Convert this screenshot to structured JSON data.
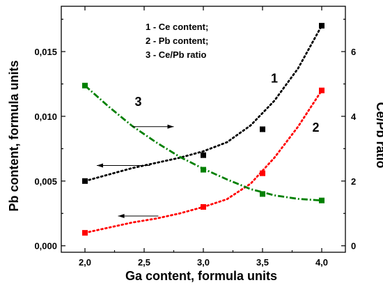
{
  "chart_data": {
    "type": "scatter",
    "title": "",
    "xlabel": "Ga content, formula units",
    "ylabel": "Pb content, formula units",
    "y2label": "Ce/Pb ratio",
    "xlim": [
      1.8,
      4.2
    ],
    "ylim": [
      -0.0005,
      0.0185
    ],
    "y2lim": [
      -0.2,
      7.4
    ],
    "x_ticks": [
      "2,0",
      "2,5",
      "3,0",
      "3,5",
      "4,0"
    ],
    "x_tick_values": [
      2.0,
      2.5,
      3.0,
      3.5,
      4.0
    ],
    "y_ticks": [
      "0,000",
      "0,005",
      "0,010",
      "0,015"
    ],
    "y_tick_values": [
      0.0,
      0.005,
      0.01,
      0.015
    ],
    "y2_ticks": [
      "0",
      "2",
      "4",
      "6"
    ],
    "y2_tick_values": [
      0,
      2,
      4,
      6
    ],
    "legend": {
      "placement": "top-center",
      "entries": [
        "1 - Ce content;",
        "2 - Pb content;",
        "3 - Ce/Pb ratio"
      ]
    },
    "series": [
      {
        "name": "1",
        "axis": "left",
        "color": "#000000",
        "line_style": "dotted",
        "x": [
          2.0,
          3.0,
          3.5,
          4.0
        ],
        "y": [
          0.005,
          0.007,
          0.009,
          0.017
        ],
        "fit": [
          [
            2.0,
            0.005
          ],
          [
            2.2,
            0.0055
          ],
          [
            2.4,
            0.006
          ],
          [
            2.6,
            0.0064
          ],
          [
            2.8,
            0.0068
          ],
          [
            3.0,
            0.0073
          ],
          [
            3.2,
            0.008
          ],
          [
            3.4,
            0.0093
          ],
          [
            3.6,
            0.0112
          ],
          [
            3.8,
            0.0137
          ],
          [
            4.0,
            0.017
          ]
        ]
      },
      {
        "name": "2",
        "axis": "left",
        "color": "#ff0000",
        "line_style": "dotted",
        "x": [
          2.0,
          3.0,
          3.5,
          4.0
        ],
        "y": [
          0.001,
          0.003,
          0.0056,
          0.012
        ],
        "fit": [
          [
            2.0,
            0.001
          ],
          [
            2.2,
            0.0014
          ],
          [
            2.4,
            0.0018
          ],
          [
            2.6,
            0.0021
          ],
          [
            2.8,
            0.0025
          ],
          [
            3.0,
            0.003
          ],
          [
            3.2,
            0.0036
          ],
          [
            3.4,
            0.0048
          ],
          [
            3.6,
            0.0068
          ],
          [
            3.8,
            0.0092
          ],
          [
            4.0,
            0.012
          ]
        ]
      },
      {
        "name": "3",
        "axis": "right",
        "color": "#008000",
        "line_style": "dash-dot",
        "x": [
          2.0,
          3.0,
          3.5,
          4.0
        ],
        "y": [
          4.95,
          2.35,
          1.6,
          1.4
        ],
        "fit": [
          [
            2.0,
            4.95
          ],
          [
            2.2,
            4.3
          ],
          [
            2.4,
            3.7
          ],
          [
            2.6,
            3.2
          ],
          [
            2.8,
            2.75
          ],
          [
            3.0,
            2.38
          ],
          [
            3.2,
            2.05
          ],
          [
            3.4,
            1.75
          ],
          [
            3.6,
            1.56
          ],
          [
            3.8,
            1.45
          ],
          [
            4.0,
            1.4
          ]
        ]
      }
    ],
    "annotations": [
      {
        "label": "1",
        "x": 3.6,
        "y": 0.0126,
        "axis": "left"
      },
      {
        "label": "2",
        "x": 3.95,
        "y": 0.0088,
        "axis": "left"
      },
      {
        "label": "3",
        "x": 2.45,
        "y": 0.0108,
        "axis": "left"
      }
    ],
    "arrows": [
      {
        "series": "3",
        "direction": "right",
        "from": [
          2.4,
          0.0092
        ],
        "to": [
          2.75,
          0.0092
        ]
      },
      {
        "series": "1",
        "direction": "left",
        "from": [
          2.55,
          0.0062
        ],
        "to": [
          2.1,
          0.0062
        ]
      },
      {
        "series": "2",
        "direction": "left",
        "from": [
          2.62,
          0.0023
        ],
        "to": [
          2.28,
          0.0023
        ]
      }
    ]
  }
}
